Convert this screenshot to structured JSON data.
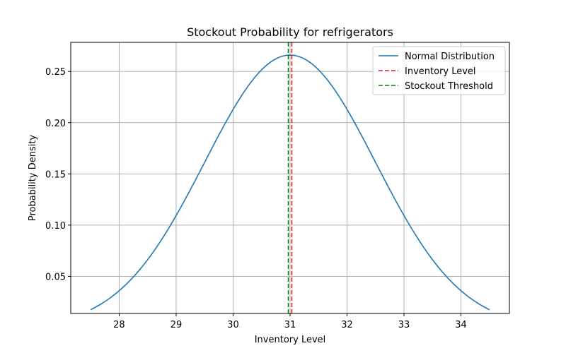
{
  "chart_data": {
    "type": "line",
    "title": "Stockout Probability for refrigerators",
    "xlabel": "Inventory Level",
    "ylabel": "Probability Density",
    "xlim": [
      27.15,
      34.85
    ],
    "ylim": [
      0.0138,
      0.2784
    ],
    "grid": true,
    "legend_position": "top-right",
    "xticks": [
      28,
      29,
      30,
      31,
      32,
      33,
      34
    ],
    "yticks": [
      0.05,
      0.1,
      0.15,
      0.2,
      0.25
    ],
    "ytick_labels": [
      "0.05",
      "0.10",
      "0.15",
      "0.20",
      "0.25"
    ],
    "distribution": {
      "mean": 31.0,
      "std": 1.5,
      "x_range": [
        27.5,
        34.5
      ]
    },
    "series": [
      {
        "name": "Normal Distribution",
        "kind": "curve",
        "color": "#1f77b4",
        "style": "solid"
      },
      {
        "name": "Inventory Level",
        "kind": "vline",
        "x": 31.03,
        "color": "#d62728",
        "style": "dashed"
      },
      {
        "name": "Stockout Threshold",
        "kind": "vline",
        "x": 30.97,
        "color": "#008000",
        "style": "dashed"
      }
    ]
  }
}
